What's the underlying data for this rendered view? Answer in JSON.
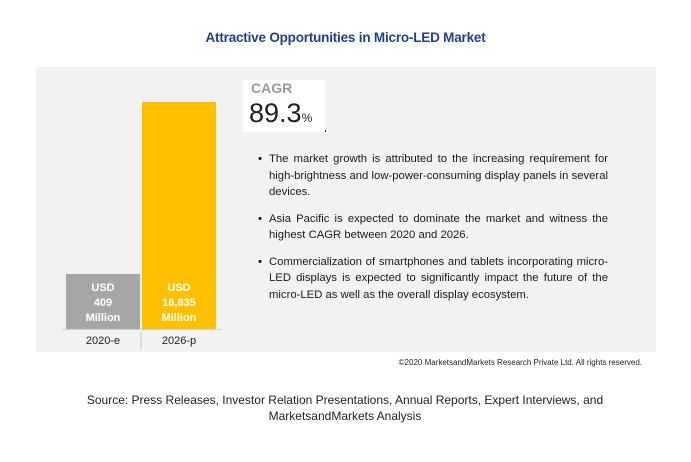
{
  "title": "Attractive Opportunities in Micro-LED Market",
  "chart_data": {
    "type": "bar",
    "categories": [
      "2020-e",
      "2026-p"
    ],
    "values": [
      409,
      18835
    ],
    "unit": "USD Million",
    "data_labels": [
      [
        "USD",
        "409",
        "Million"
      ],
      [
        "USD",
        "18,835",
        "Million"
      ]
    ],
    "colors": [
      "#a6a6a6",
      "#ffc000"
    ],
    "ylim": [
      0,
      18835
    ],
    "grid": false
  },
  "cagr": {
    "label": "CAGR",
    "value": "89.3",
    "unit": "%"
  },
  "bullets": [
    {
      "dot": "▪",
      "text": "The market growth is attributed to the increasing requirement for high-brightness and low-power-consuming display panels in several devices."
    },
    {
      "dot": "▪",
      "text": "Asia Pacific is expected to dominate the market and witness the highest CAGR between 2020 and 2026."
    },
    {
      "dot": "▪",
      "text": "Commercialization of smartphones and tablets incorporating micro-LED displays is expected to significantly impact the future of the micro-LED as well as the overall display ecosystem."
    }
  ],
  "copyright": "©2020 MarketsandMarkets Research Private Ltd. All rights reserved.",
  "source": "Source: Press Releases, Investor Relation Presentations, Annual Reports, Expert Interviews, and MarketsandMarkets Analysis"
}
